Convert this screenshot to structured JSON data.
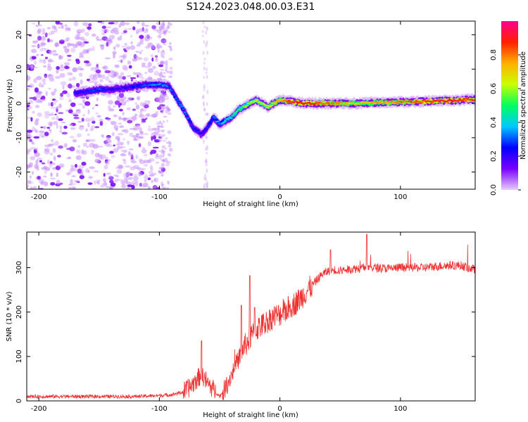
{
  "title": "S124.2023.048.00.03.E31",
  "chart_data": [
    {
      "type": "heatmap",
      "xlabel": "Height of straight line (km)",
      "ylabel": "Frequency (Hz)",
      "xlim": [
        -210,
        162
      ],
      "ylim": [
        -25,
        24
      ],
      "xticks": [
        -200,
        -100,
        0,
        100
      ],
      "yticks": [
        -20,
        -10,
        0,
        10,
        20
      ],
      "colorbar": {
        "label": "Normalized spectral amplitude",
        "range": [
          0,
          1
        ],
        "ticks": [
          "0.0",
          "0.2",
          "0.4",
          "0.6",
          "0.8"
        ],
        "colors": [
          "#e8ccff",
          "#7a00ff",
          "#0000ff",
          "#00c8ff",
          "#00ff60",
          "#c8ff00",
          "#ffb000",
          "#ff2000",
          "#ff0090"
        ]
      },
      "ridge": {
        "x": [
          -170,
          -160,
          -150,
          -140,
          -130,
          -120,
          -110,
          -100,
          -92,
          -85,
          -78,
          -72,
          -65,
          -60,
          -55,
          -50,
          -45,
          -40,
          -35,
          -30,
          -25,
          -20,
          -15,
          -10,
          -5,
          0,
          10,
          20,
          40,
          60,
          80,
          100,
          120,
          140,
          162
        ],
        "y": [
          3,
          3.5,
          4,
          4,
          4.5,
          5,
          5.5,
          5.5,
          5,
          1,
          -3,
          -7,
          -9,
          -7,
          -4,
          -6,
          -5,
          -4,
          -2,
          -1,
          0,
          1,
          0,
          -1,
          0,
          1,
          0.5,
          0,
          0,
          0,
          0.2,
          0.4,
          0.6,
          0.8,
          1.2
        ],
        "amplitude": [
          0.2,
          0.25,
          0.3,
          0.2,
          0.2,
          0.25,
          0.3,
          0.35,
          0.3,
          0.3,
          0.3,
          0.25,
          0.2,
          0.25,
          0.3,
          0.35,
          0.4,
          0.45,
          0.5,
          0.55,
          0.6,
          0.65,
          0.6,
          0.65,
          0.7,
          0.75,
          0.85,
          0.9,
          0.8,
          0.7,
          0.75,
          0.8,
          0.85,
          0.9,
          0.85
        ]
      }
    },
    {
      "type": "line",
      "xlabel": "Height of straight line (km)",
      "ylabel": "SNR (10 * v/v)",
      "xlim": [
        -210,
        162
      ],
      "ylim": [
        0,
        380
      ],
      "xticks": [
        -200,
        -100,
        0,
        100
      ],
      "yticks": [
        0,
        100,
        200,
        300
      ],
      "line_color": "#ee3333",
      "series": [
        {
          "x": [
            -210,
            -180,
            -150,
            -120,
            -100,
            -90,
            -80,
            -75,
            -70,
            -65,
            -60,
            -55,
            -50,
            -45,
            -40,
            -35,
            -30,
            -25,
            -20,
            -15,
            -10,
            -5,
            0,
            5,
            10,
            15,
            20,
            25,
            30,
            35,
            40,
            45,
            50,
            60,
            70,
            80,
            90,
            100,
            110,
            120,
            130,
            140,
            150,
            162
          ],
          "y": [
            10,
            10,
            10,
            10,
            12,
            14,
            20,
            30,
            45,
            60,
            40,
            25,
            10,
            30,
            60,
            90,
            120,
            140,
            160,
            170,
            180,
            190,
            195,
            205,
            215,
            225,
            240,
            255,
            270,
            285,
            292,
            295,
            293,
            297,
            300,
            300,
            298,
            300,
            300,
            300,
            303,
            305,
            305,
            295
          ],
          "peaks": [
            {
              "x": -65,
              "y": 135
            },
            {
              "x": -32,
              "y": 215
            },
            {
              "x": -25,
              "y": 282
            },
            {
              "x": -21,
              "y": 210
            },
            {
              "x": 42,
              "y": 340
            },
            {
              "x": 72,
              "y": 375
            }
          ]
        }
      ]
    }
  ]
}
